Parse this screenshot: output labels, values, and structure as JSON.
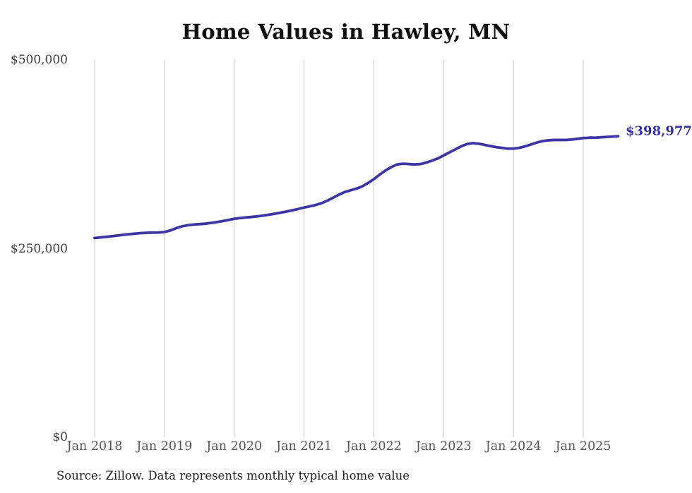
{
  "title": "Home Values in Hawley, MN",
  "source_note": "Source: Zillow. Data represents monthly typical home value",
  "colors": {
    "line": "#3b36a3",
    "end_label": "#32309c",
    "grid": "#c9c9c9",
    "x_tick_text": "#565656",
    "y_tick_text": "#3d3d3d",
    "title_text": "#0d0d0d",
    "source_text": "#1f1f1f",
    "background": "#ffffff"
  },
  "chart_data": {
    "type": "line",
    "title": "Home Values in Hawley, MN",
    "series_name": "Monthly typical home value (USD)",
    "x_start_month": "2018-01",
    "x_end_month": "2025-07",
    "x_tick_labels": [
      "Jan 2018",
      "Jan 2019",
      "Jan 2020",
      "Jan 2021",
      "Jan 2022",
      "Jan 2023",
      "Jan 2024",
      "Jan 2025"
    ],
    "y_ticks": [
      {
        "label": "$0",
        "value": 0
      },
      {
        "label": "$250,000",
        "value": 250000
      },
      {
        "label": "$500,000",
        "value": 500000
      }
    ],
    "ylim": [
      0,
      500000
    ],
    "grid": "vertical-only",
    "legend": "none",
    "end_point_label": "$398,977",
    "end_point_value": 398977,
    "values_monthly_usd": [
      264000,
      264800,
      265600,
      266500,
      267400,
      268300,
      269200,
      270000,
      270600,
      271000,
      271200,
      271400,
      272000,
      274000,
      277000,
      279500,
      281000,
      281900,
      282400,
      283000,
      284000,
      285200,
      286500,
      288000,
      289500,
      290500,
      291300,
      292000,
      292800,
      293800,
      295000,
      296300,
      297700,
      299200,
      300800,
      302500,
      304500,
      306000,
      307800,
      310200,
      313500,
      317500,
      321500,
      325000,
      327300,
      329500,
      332500,
      337000,
      342000,
      348000,
      353500,
      358000,
      361500,
      362500,
      362000,
      361500,
      362000,
      364000,
      366500,
      369500,
      373500,
      377500,
      381500,
      385500,
      388500,
      389800,
      389000,
      387500,
      386000,
      384500,
      383500,
      382500,
      382500,
      383500,
      385500,
      388000,
      390500,
      392500,
      393500,
      394000,
      394000,
      394000,
      394500,
      395500,
      396500,
      397000,
      397000,
      397500,
      398000,
      398500,
      398977
    ]
  }
}
